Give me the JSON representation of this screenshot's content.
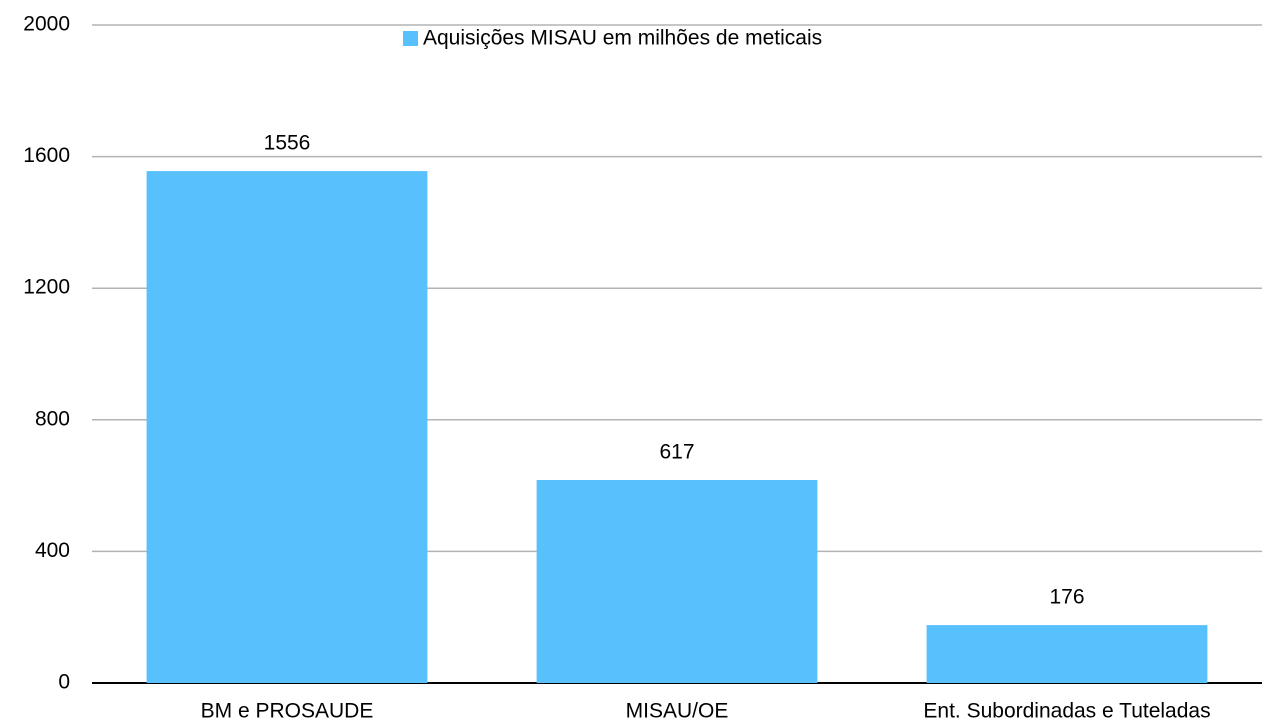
{
  "chart_data": {
    "type": "bar",
    "categories": [
      "BM e PROSAUDE",
      "MISAU/OE",
      "Ent. Subordinadas e Tuteladas"
    ],
    "series": [
      {
        "name": "Aquisições MISAU em milhões de meticais",
        "color": "#58c1fd",
        "values": [
          1556,
          617,
          176
        ]
      }
    ],
    "ylim": [
      0,
      2000
    ],
    "yticks": [
      0,
      400,
      800,
      1200,
      1600,
      2000
    ],
    "grid": true,
    "legend": "top"
  }
}
